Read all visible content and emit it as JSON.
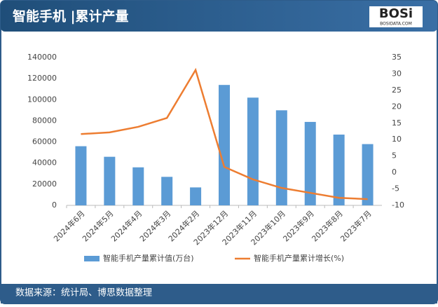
{
  "header": {
    "title": "智能手机 |累计产量",
    "logo": "BOSi",
    "logo_sub": "BOSIDATA.COM"
  },
  "chart_data": {
    "type": "combo",
    "categories": [
      "2024年6月",
      "2024年5月",
      "2024年4月",
      "2024年3月",
      "2024年2月",
      "2023年12月",
      "2023年11月",
      "2023年10月",
      "2023年9月",
      "2023年8月",
      "2023年7月"
    ],
    "series": [
      {
        "name": "智能手机产量累计值(万台)",
        "type": "bar",
        "color": "#5b9bd5",
        "values": [
          56000,
          46000,
          36000,
          27000,
          17000,
          114000,
          102000,
          90000,
          79000,
          67000,
          58000
        ]
      },
      {
        "name": "智能手机产量累计增长(%)",
        "type": "line",
        "axis": "y2",
        "color": "#ed7d31",
        "values": [
          11.7,
          12.2,
          13.9,
          16.6,
          31.2,
          1.7,
          -2.1,
          -4.7,
          -6.2,
          -7.7,
          -8.1
        ]
      }
    ],
    "ylim": [
      0,
      140000
    ],
    "yticks": [
      0,
      20000,
      40000,
      60000,
      80000,
      100000,
      120000,
      140000
    ],
    "y2lim": [
      -10,
      35
    ],
    "y2ticks": [
      -10,
      -5,
      0,
      5,
      10,
      15,
      20,
      25,
      30,
      35
    ],
    "grid": false,
    "legend": "bottom"
  },
  "footer": {
    "source": "数据来源：统计局、博思数据整理"
  }
}
